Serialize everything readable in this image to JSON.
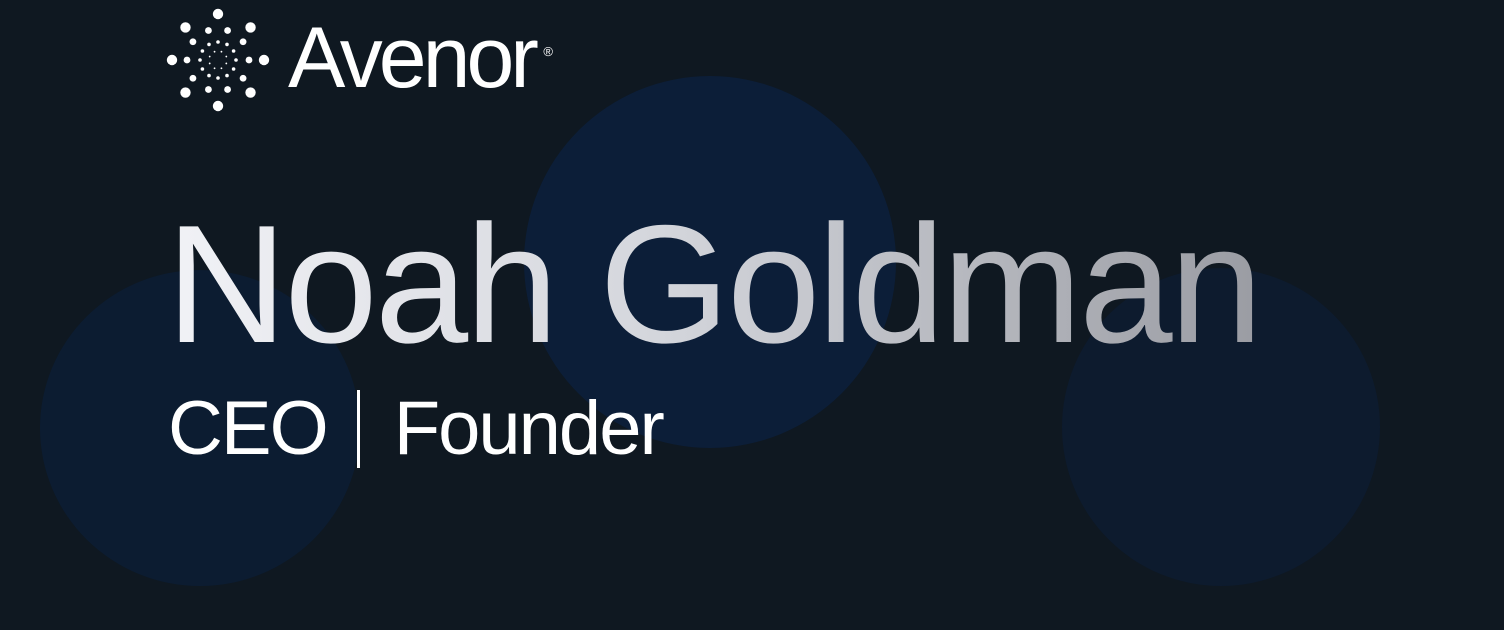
{
  "brand": {
    "name": "Avenor",
    "registered_mark": "®"
  },
  "person": {
    "name": "Noah Goldman",
    "title": "CEO",
    "role": "Founder"
  },
  "colors": {
    "background": "#0f1821",
    "circle": "#0c1e38",
    "text": "#ffffff",
    "name_gradient_start": "#f1f2f6",
    "name_gradient_end": "#9a9ca3"
  }
}
